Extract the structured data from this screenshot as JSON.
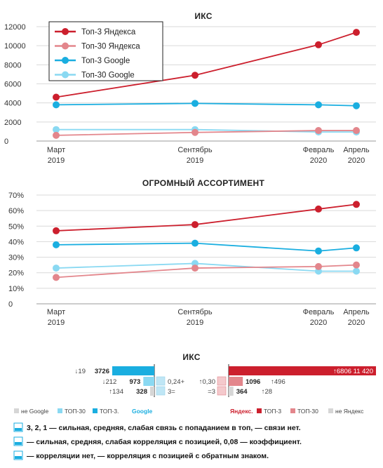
{
  "chart_data": [
    {
      "type": "line",
      "title": "ИКС",
      "x": [
        "Март|2019",
        "Сентябрь|2019",
        "Февраль|2020",
        "Апрель|2020"
      ],
      "ylim": [
        0,
        12000
      ],
      "yticks": [
        "0",
        "2000",
        "4000",
        "6000",
        "8000",
        "10000",
        "12000"
      ],
      "grid": true,
      "legend": "top-left",
      "series": [
        {
          "name": "Топ-3 Яндекса",
          "color": "#cc1f2d",
          "values": [
            4600,
            6900,
            10100,
            11400
          ]
        },
        {
          "name": "Топ-30 Яндекса",
          "color": "#e3868c",
          "values": [
            600,
            900,
            1100,
            1100
          ]
        },
        {
          "name": "Топ-3 Google",
          "color": "#1aaee0",
          "values": [
            3800,
            3950,
            3800,
            3700
          ]
        },
        {
          "name": "Топ-30 Google",
          "color": "#8ad9f2",
          "values": [
            1200,
            1200,
            950,
            950
          ]
        }
      ]
    },
    {
      "type": "line",
      "title": "ОГРОМНЫЙ АССОРТИМЕНТ",
      "x": [
        "Март|2019",
        "Сентябрь|2019",
        "Февраль|2020",
        "Апрель|2020"
      ],
      "ylim": [
        0,
        70
      ],
      "yticks": [
        "0",
        "10%",
        "20%",
        "30%",
        "40%",
        "50%",
        "60%",
        "70%"
      ],
      "grid": true,
      "series": [
        {
          "color": "#cc1f2d",
          "values": [
            47,
            51,
            61,
            64
          ]
        },
        {
          "color": "#e3868c",
          "values": [
            17,
            23,
            24,
            25
          ]
        },
        {
          "color": "#1aaee0",
          "values": [
            38,
            39,
            34,
            36
          ]
        },
        {
          "color": "#8ad9f2",
          "values": [
            23,
            26,
            21,
            21
          ]
        }
      ]
    },
    {
      "type": "bar",
      "title": "ИКС",
      "google": {
        "rows": [
          {
            "change": "↓19",
            "value": "3726",
            "size": 3726,
            "color": "#1aaee0",
            "corr": ""
          },
          {
            "change": "↓212",
            "value": "973",
            "size": 973,
            "color": "#8ad9f2",
            "corr": "0,24+"
          },
          {
            "change": "↑134",
            "value": "328",
            "size": 328,
            "color": "#d6d6d6",
            "corr": "3="
          }
        ],
        "legend": [
          "не Google",
          "ТОП-30",
          "ТОП-3.",
          "Google"
        ]
      },
      "yandex": {
        "rows": [
          {
            "change": "↑6806",
            "value": "11 420",
            "size": 11420,
            "color": "#cc1f2d",
            "corr": ""
          },
          {
            "change": "↑496",
            "value": "1096",
            "size": 1096,
            "color": "#e3868c",
            "corr": "↑0,30"
          },
          {
            "change": "↑28",
            "value": "364",
            "size": 364,
            "color": "#d6d6d6",
            "corr": "=3"
          }
        ],
        "legend": [
          "Яндекс.",
          "ТОП-3",
          "ТОП-30",
          "не Яндекс"
        ]
      },
      "footnotes": [
        "3, 2, 1 — сильная, средняя, слабая связь с попаданием в топ, — связи нет.",
        "— сильная, средняя, слабая корреляция с позицией, 0,08 — коэффициент.",
        "— корреляции нет, — корреляция с позицией с обратным знаком."
      ]
    }
  ]
}
